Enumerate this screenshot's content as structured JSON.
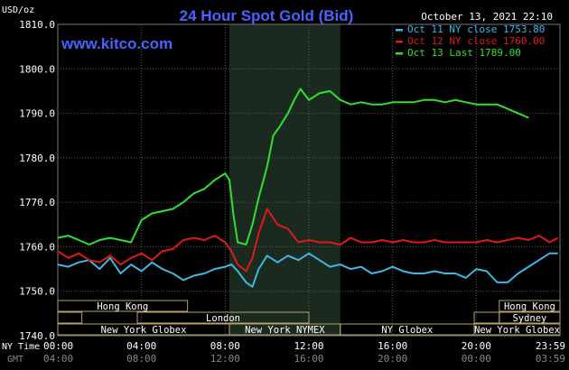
{
  "chart_data": {
    "type": "line",
    "title": "24 Hour Spot Gold (Bid)",
    "timestamp": "October 13, 2021 22:10",
    "site": "www.kitco.com",
    "ylabel": "USD/oz",
    "ylim": [
      1740,
      1810
    ],
    "yticks": [
      "1740.0",
      "1750.0",
      "1760.0",
      "1770.0",
      "1780.0",
      "1790.0",
      "1800.0",
      "1810.0"
    ],
    "x_ny_label": "NY Time",
    "x_gmt_label": "GMT",
    "x_ny_ticks": [
      "00:00",
      "04:00",
      "08:00",
      "12:00",
      "16:00",
      "20:00",
      "23:59"
    ],
    "x_gmt_ticks": [
      "04:00",
      "08:00",
      "12:00",
      "16:00",
      "20:00",
      "00:00",
      "03:59"
    ],
    "grid": true,
    "legend_position": "top-right",
    "series": [
      {
        "name": "Oct 11 NY close 1753.80",
        "color": "#3fb6e6",
        "x": [
          0,
          0.5,
          1,
          1.5,
          2,
          2.5,
          3,
          3.5,
          4,
          4.5,
          5,
          5.5,
          6,
          6.5,
          7,
          7.5,
          8,
          8.3,
          8.6,
          9,
          9.3,
          9.6,
          10,
          10.5,
          11,
          11.5,
          12,
          12.5,
          13,
          13.5,
          14,
          14.5,
          15,
          15.5,
          16,
          16.5,
          17,
          17.5,
          18,
          18.5,
          19,
          19.5,
          20,
          20.5,
          21,
          21.5,
          22,
          22.5,
          23,
          23.5,
          23.9
        ],
        "values": [
          1756,
          1755.5,
          1756.5,
          1757,
          1755,
          1757.5,
          1754,
          1756,
          1754.5,
          1756.5,
          1755,
          1754,
          1752.5,
          1753.5,
          1754,
          1755,
          1755.5,
          1756,
          1754.5,
          1752,
          1751,
          1755,
          1758,
          1756.5,
          1758,
          1757,
          1758.5,
          1757,
          1755.5,
          1756,
          1755,
          1755.5,
          1754,
          1754.5,
          1755.5,
          1754.5,
          1754,
          1754,
          1754.5,
          1754,
          1754,
          1753,
          1755,
          1754.5,
          1752,
          1752,
          1754,
          1755.5,
          1757,
          1758.5,
          1758.5
        ]
      },
      {
        "name": "Oct 12 NY close 1760.00",
        "color": "#e01818",
        "x": [
          0,
          0.5,
          1,
          1.5,
          2,
          2.5,
          3,
          3.5,
          4,
          4.5,
          5,
          5.5,
          6,
          6.5,
          7,
          7.5,
          8,
          8.3,
          8.6,
          9,
          9.3,
          9.6,
          10,
          10.5,
          11,
          11.5,
          12,
          12.5,
          13,
          13.5,
          14,
          14.5,
          15,
          15.5,
          16,
          16.5,
          17,
          17.5,
          18,
          18.5,
          19,
          19.5,
          20,
          20.5,
          21,
          21.5,
          22,
          22.5,
          23,
          23.5,
          23.9
        ],
        "values": [
          1759,
          1757.5,
          1758.5,
          1757,
          1756.5,
          1758,
          1756,
          1757.5,
          1758.5,
          1757,
          1759,
          1759.5,
          1761.5,
          1762,
          1761.5,
          1762.5,
          1761,
          1759,
          1756,
          1754.5,
          1757.5,
          1763,
          1768.5,
          1765,
          1764,
          1761,
          1761.5,
          1761,
          1761,
          1760.5,
          1762,
          1761,
          1761,
          1761.5,
          1761,
          1761.5,
          1761,
          1761,
          1761.5,
          1761,
          1761,
          1761,
          1761,
          1761.5,
          1761,
          1761.5,
          1762,
          1761.5,
          1762.5,
          1761,
          1762
        ]
      },
      {
        "name": "Oct 13 Last 1789.00",
        "color": "#30e030",
        "x": [
          0,
          0.5,
          1,
          1.5,
          2,
          2.5,
          3,
          3.5,
          4,
          4.5,
          5,
          5.5,
          6,
          6.5,
          7,
          7.5,
          8,
          8.2,
          8.4,
          8.6,
          9,
          9.3,
          9.6,
          10,
          10.3,
          10.6,
          11,
          11.3,
          11.6,
          12,
          12.5,
          13,
          13.5,
          14,
          14.5,
          15,
          15.5,
          16,
          16.5,
          17,
          17.5,
          18,
          18.5,
          19,
          19.5,
          20,
          20.5,
          21,
          21.5,
          22,
          22.5
        ],
        "values": [
          1762,
          1762.5,
          1761.5,
          1760.5,
          1761.5,
          1762,
          1761.5,
          1761,
          1766,
          1767.5,
          1768,
          1768.5,
          1770,
          1772,
          1773,
          1775,
          1776.5,
          1775,
          1767,
          1761,
          1760.5,
          1765,
          1771,
          1778,
          1785,
          1787,
          1790,
          1793,
          1795.5,
          1793,
          1794.5,
          1795,
          1793,
          1792,
          1792.5,
          1792,
          1792,
          1792.5,
          1792.5,
          1792.5,
          1793,
          1793,
          1792.5,
          1793,
          1792.5,
          1792,
          1792,
          1792,
          1791,
          1790,
          1789
        ]
      }
    ],
    "sessions": [
      {
        "label": "Hong Kong",
        "start": 0,
        "end": 6.2,
        "row": 0
      },
      {
        "label": "",
        "start": 0,
        "end": 1.15,
        "row": 1
      },
      {
        "label": "London",
        "start": 3.8,
        "end": 12,
        "row": 1
      },
      {
        "label": "New York Globex",
        "start": 0,
        "end": 8.2,
        "row": 2
      },
      {
        "label": "New York NYMEX",
        "start": 8.2,
        "end": 13.5,
        "row": 2
      },
      {
        "label": "NY Globex",
        "start": 13.5,
        "end": 19.9,
        "row": 2
      },
      {
        "label": "Hong Kong",
        "start": 21.1,
        "end": 24,
        "row": 0
      },
      {
        "label": "",
        "start": 19.9,
        "end": 21.1,
        "row": 1
      },
      {
        "label": "Sydney",
        "start": 21.1,
        "end": 24,
        "row": 1
      },
      {
        "label": "New York Globex",
        "start": 19.9,
        "end": 24,
        "row": 2
      }
    ],
    "highlight_period": {
      "start": 8.2,
      "end": 13.5
    }
  }
}
